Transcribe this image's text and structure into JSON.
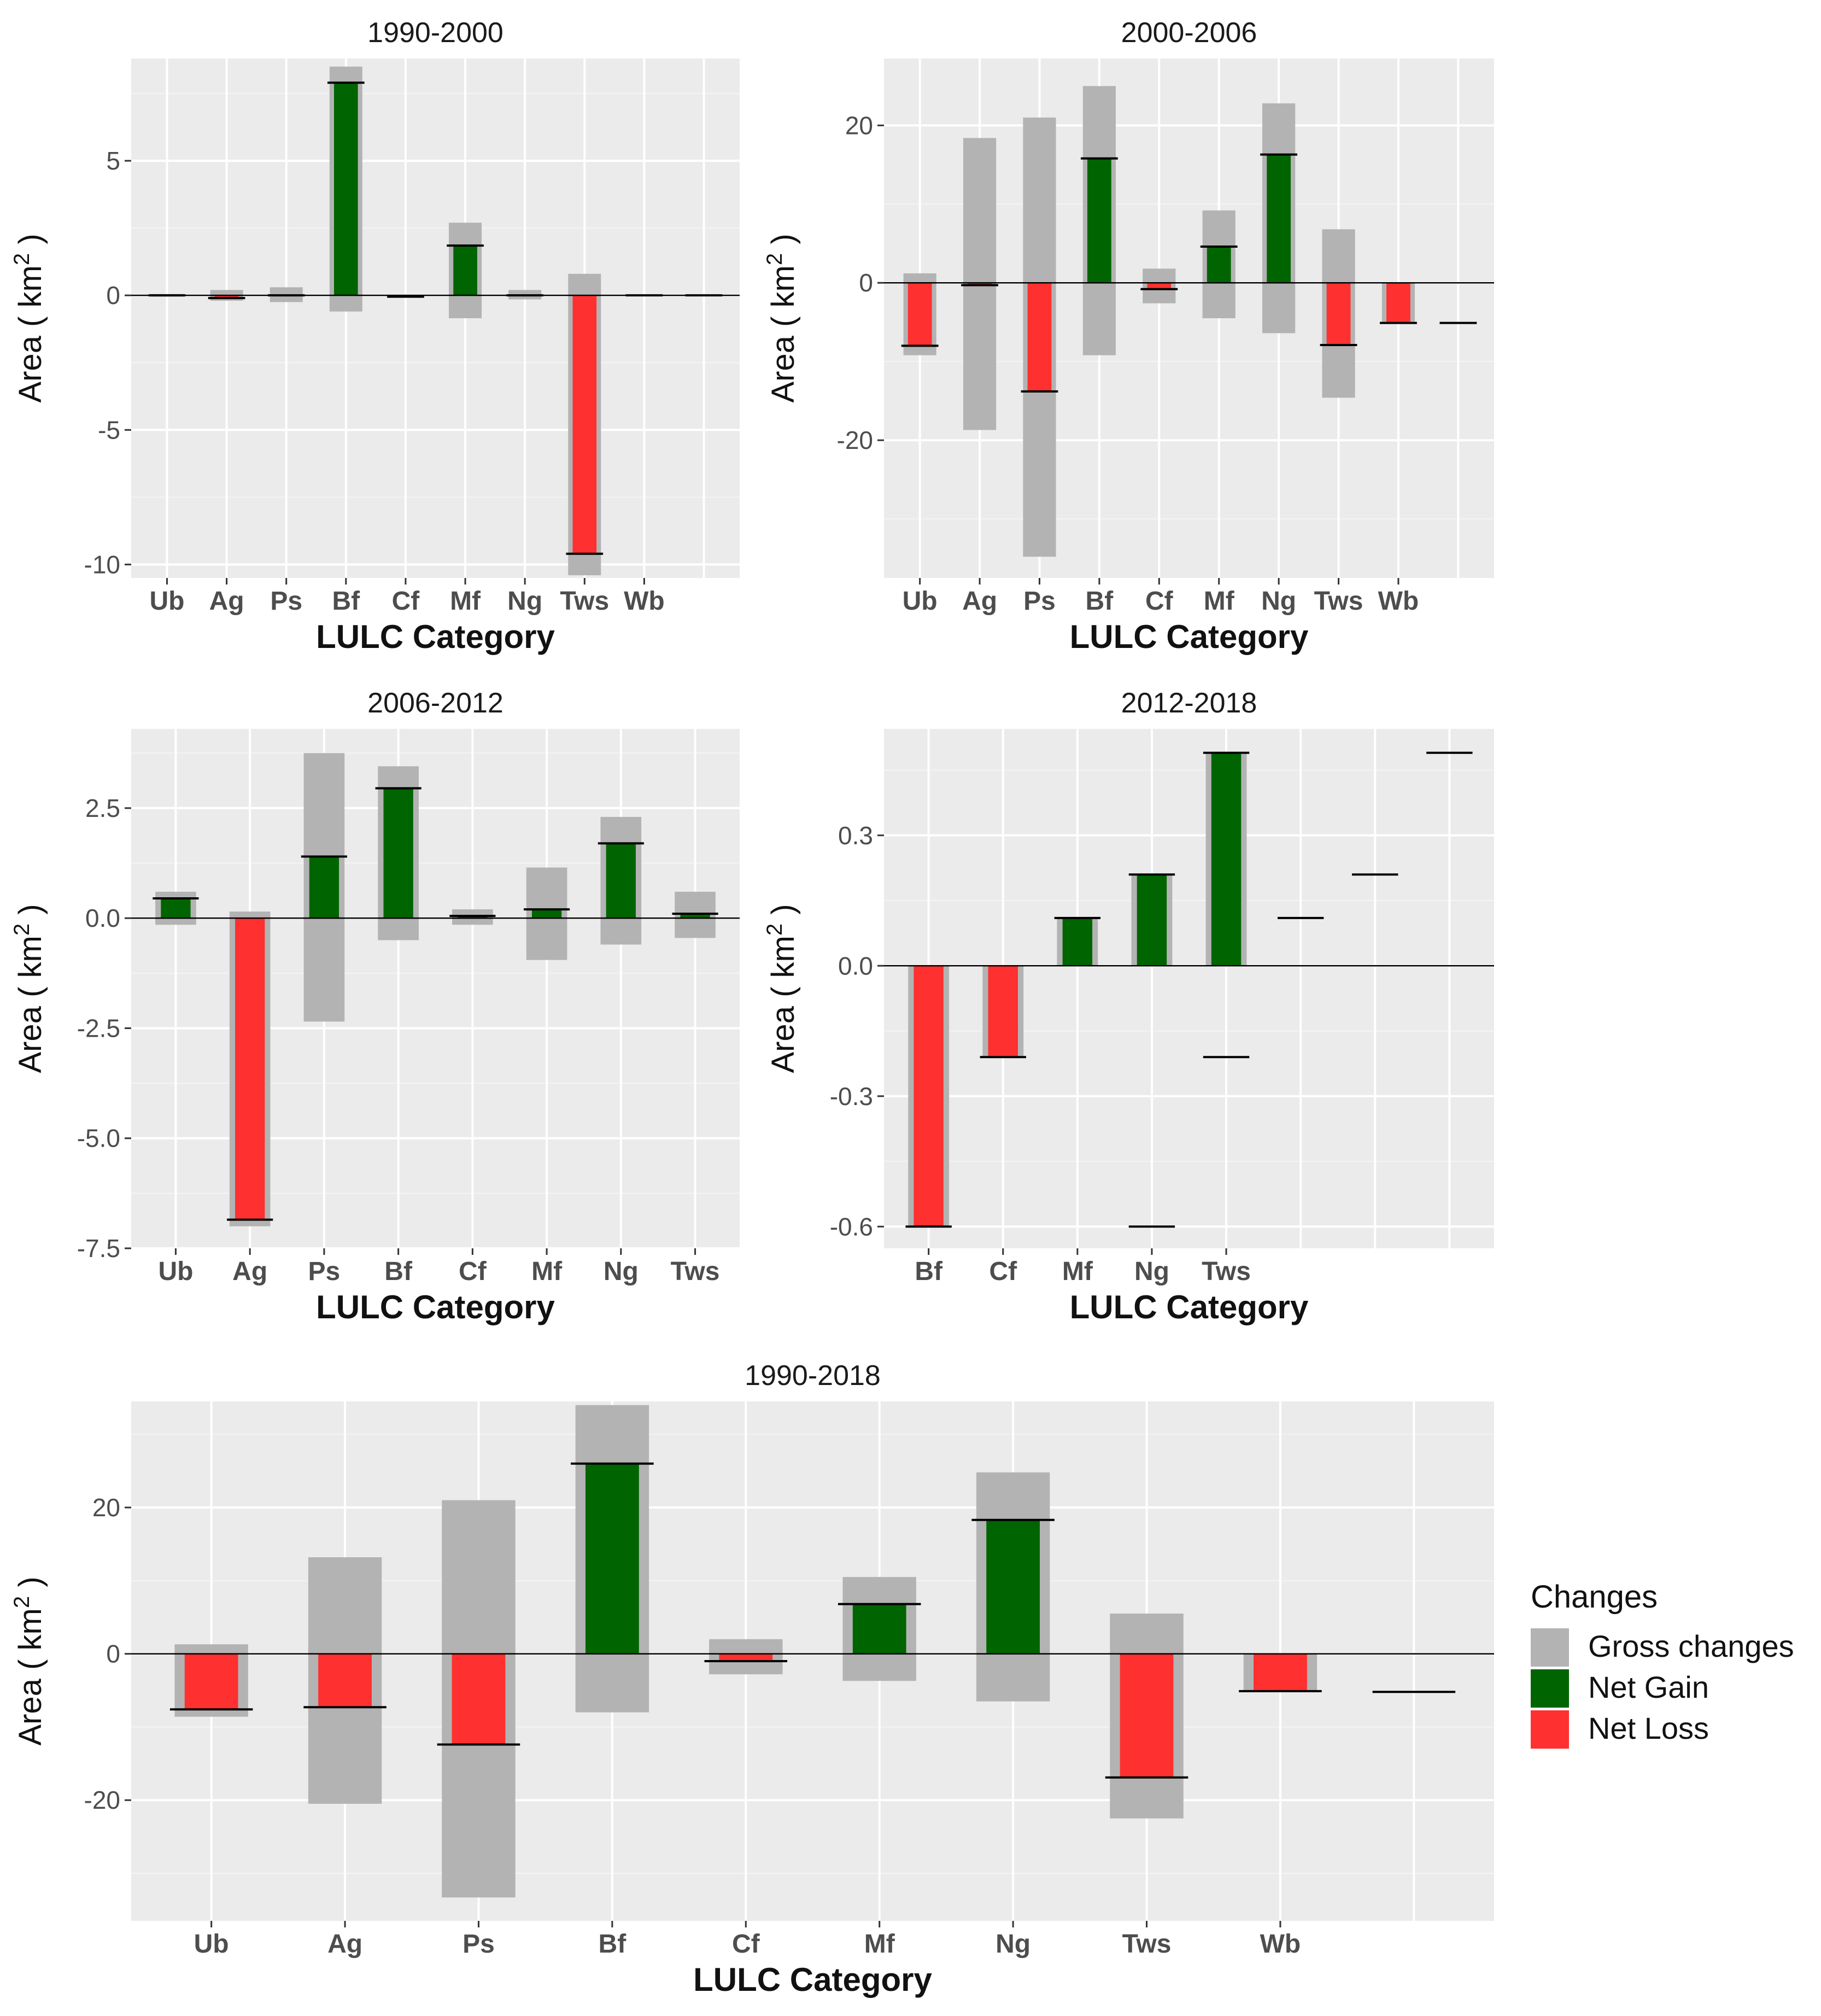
{
  "colors": {
    "panel_bg": "#ebebeb",
    "grid_major": "#ffffff",
    "grid_minor": "#f4f4f4",
    "gross": "#b3b3b3",
    "net_gain": "#006400",
    "net_loss": "#ff3030",
    "zero_line": "#000000"
  },
  "legend": {
    "title": "Changes",
    "items": [
      {
        "label": "Gross changes",
        "color": "#b3b3b3"
      },
      {
        "label": "Net Gain",
        "color": "#006400"
      },
      {
        "label": "Net Loss",
        "color": "#ff3030"
      }
    ]
  },
  "chart_data": [
    {
      "type": "bar",
      "title": "1990-2000",
      "xlabel": "LULC Category",
      "ylabel": "Area ( km",
      "ylabel_sup": "2",
      "ylabel_end": " )",
      "ylim": [
        -10.5,
        8.8
      ],
      "yticks": [
        -10,
        -5,
        0,
        5
      ],
      "ytick_labels": [
        "-10",
        "-5",
        "0",
        "5"
      ],
      "categories": [
        "Ub",
        "Ag",
        "Ps",
        "Bf",
        "Cf",
        "Mf",
        "Ng",
        "Tws",
        "Wb",
        ""
      ],
      "gross": [
        [
          -0.05,
          0.05
        ],
        [
          -0.2,
          0.2
        ],
        [
          -0.25,
          0.3
        ],
        [
          -0.6,
          8.5
        ],
        [
          -0.05,
          0.0
        ],
        [
          -0.85,
          2.7
        ],
        [
          -0.15,
          0.2
        ],
        [
          -10.4,
          0.8
        ],
        [
          0,
          0
        ],
        [
          0,
          0
        ]
      ],
      "net": [
        0.0,
        -0.1,
        0.0,
        7.9,
        -0.05,
        1.85,
        0.0,
        -9.6,
        0.0,
        0.0
      ]
    },
    {
      "type": "bar",
      "title": "2000-2006",
      "xlabel": "LULC Category",
      "ylabel": "Area ( km",
      "ylabel_sup": "2",
      "ylabel_end": " )",
      "ylim": [
        -37.5,
        28.5
      ],
      "yticks": [
        -20,
        0,
        20
      ],
      "ytick_labels": [
        "-20",
        "0",
        "20"
      ],
      "categories": [
        "Ub",
        "Ag",
        "Ps",
        "Bf",
        "Cf",
        "Mf",
        "Ng",
        "Tws",
        "Wb",
        ""
      ],
      "gross": [
        [
          -9.2,
          1.2
        ],
        [
          -18.7,
          18.4
        ],
        [
          -34.8,
          21.0
        ],
        [
          -9.2,
          25.0
        ],
        [
          -2.6,
          1.8
        ],
        [
          -4.5,
          9.2
        ],
        [
          -6.4,
          22.8
        ],
        [
          -14.6,
          6.8
        ],
        [
          -5.2,
          0
        ],
        [
          0,
          0
        ]
      ],
      "net": [
        -8.0,
        -0.3,
        -13.8,
        15.8,
        -0.8,
        4.6,
        16.3,
        -7.9,
        -5.1,
        -5.1
      ]
    },
    {
      "type": "bar",
      "title": "2006-2012",
      "xlabel": "LULC Category",
      "ylabel": "Area ( km",
      "ylabel_sup": "2",
      "ylabel_end": " )",
      "ylim": [
        -7.5,
        4.3
      ],
      "yticks": [
        -7.5,
        -5.0,
        -2.5,
        0.0,
        2.5
      ],
      "ytick_labels": [
        "-7.5",
        "-5.0",
        "-2.5",
        "0.0",
        "2.5"
      ],
      "categories": [
        "Ub",
        "Ag",
        "Ps",
        "Bf",
        "Cf",
        "Mf",
        "Ng",
        "Tws"
      ],
      "gross": [
        [
          -0.15,
          0.6
        ],
        [
          -7.0,
          0.15
        ],
        [
          -2.35,
          3.75
        ],
        [
          -0.5,
          3.45
        ],
        [
          -0.15,
          0.2
        ],
        [
          -0.95,
          1.15
        ],
        [
          -0.6,
          2.3
        ],
        [
          -0.45,
          0.6
        ]
      ],
      "net": [
        0.45,
        -6.85,
        1.4,
        2.95,
        0.05,
        0.2,
        1.7,
        0.1
      ]
    },
    {
      "type": "bar",
      "title": "2012-2018",
      "xlabel": "LULC Category",
      "ylabel": "Area ( km",
      "ylabel_sup": "2",
      "ylabel_end": " )",
      "ylim": [
        -0.65,
        0.545
      ],
      "yticks": [
        -0.6,
        -0.3,
        0.0,
        0.3
      ],
      "ytick_labels": [
        "-0.6",
        "-0.3",
        "0.0",
        "0.3"
      ],
      "categories": [
        "Bf",
        "Cf",
        "Mf",
        "Ng",
        "Tws",
        "",
        "",
        ""
      ],
      "gross": [
        [
          -0.6,
          0
        ],
        [
          -0.21,
          0
        ],
        [
          0,
          0.11
        ],
        [
          0,
          0.21
        ],
        [
          0,
          0.49
        ],
        [
          0,
          0
        ],
        [
          0,
          0
        ],
        [
          0,
          0
        ]
      ],
      "net": [
        -0.6,
        -0.21,
        0.11,
        0.21,
        0.49,
        0.11,
        0.21,
        0.49
      ],
      "extra_net_marks": [
        {
          "index": 3,
          "value": -0.6
        },
        {
          "index": 4,
          "value": -0.21
        }
      ]
    },
    {
      "type": "bar",
      "title": "1990-2018",
      "xlabel": "LULC Category",
      "ylabel": "Area ( km",
      "ylabel_sup": "2",
      "ylabel_end": " )",
      "ylim": [
        -36.5,
        34.5
      ],
      "yticks": [
        -20,
        0,
        20
      ],
      "ytick_labels": [
        "-20",
        "0",
        "20"
      ],
      "categories": [
        "Ub",
        "Ag",
        "Ps",
        "Bf",
        "Cf",
        "Mf",
        "Ng",
        "Tws",
        "Wb",
        ""
      ],
      "gross": [
        [
          -8.6,
          1.3
        ],
        [
          -20.5,
          13.2
        ],
        [
          -33.3,
          21.0
        ],
        [
          -8.0,
          34.0
        ],
        [
          -2.8,
          2.0
        ],
        [
          -3.7,
          10.5
        ],
        [
          -6.5,
          24.8
        ],
        [
          -22.5,
          5.5
        ],
        [
          -5.2,
          0
        ],
        [
          0,
          0
        ]
      ],
      "net": [
        -7.6,
        -7.3,
        -12.4,
        26.0,
        -1.0,
        6.8,
        18.3,
        -16.9,
        -5.1,
        -5.2
      ]
    }
  ]
}
